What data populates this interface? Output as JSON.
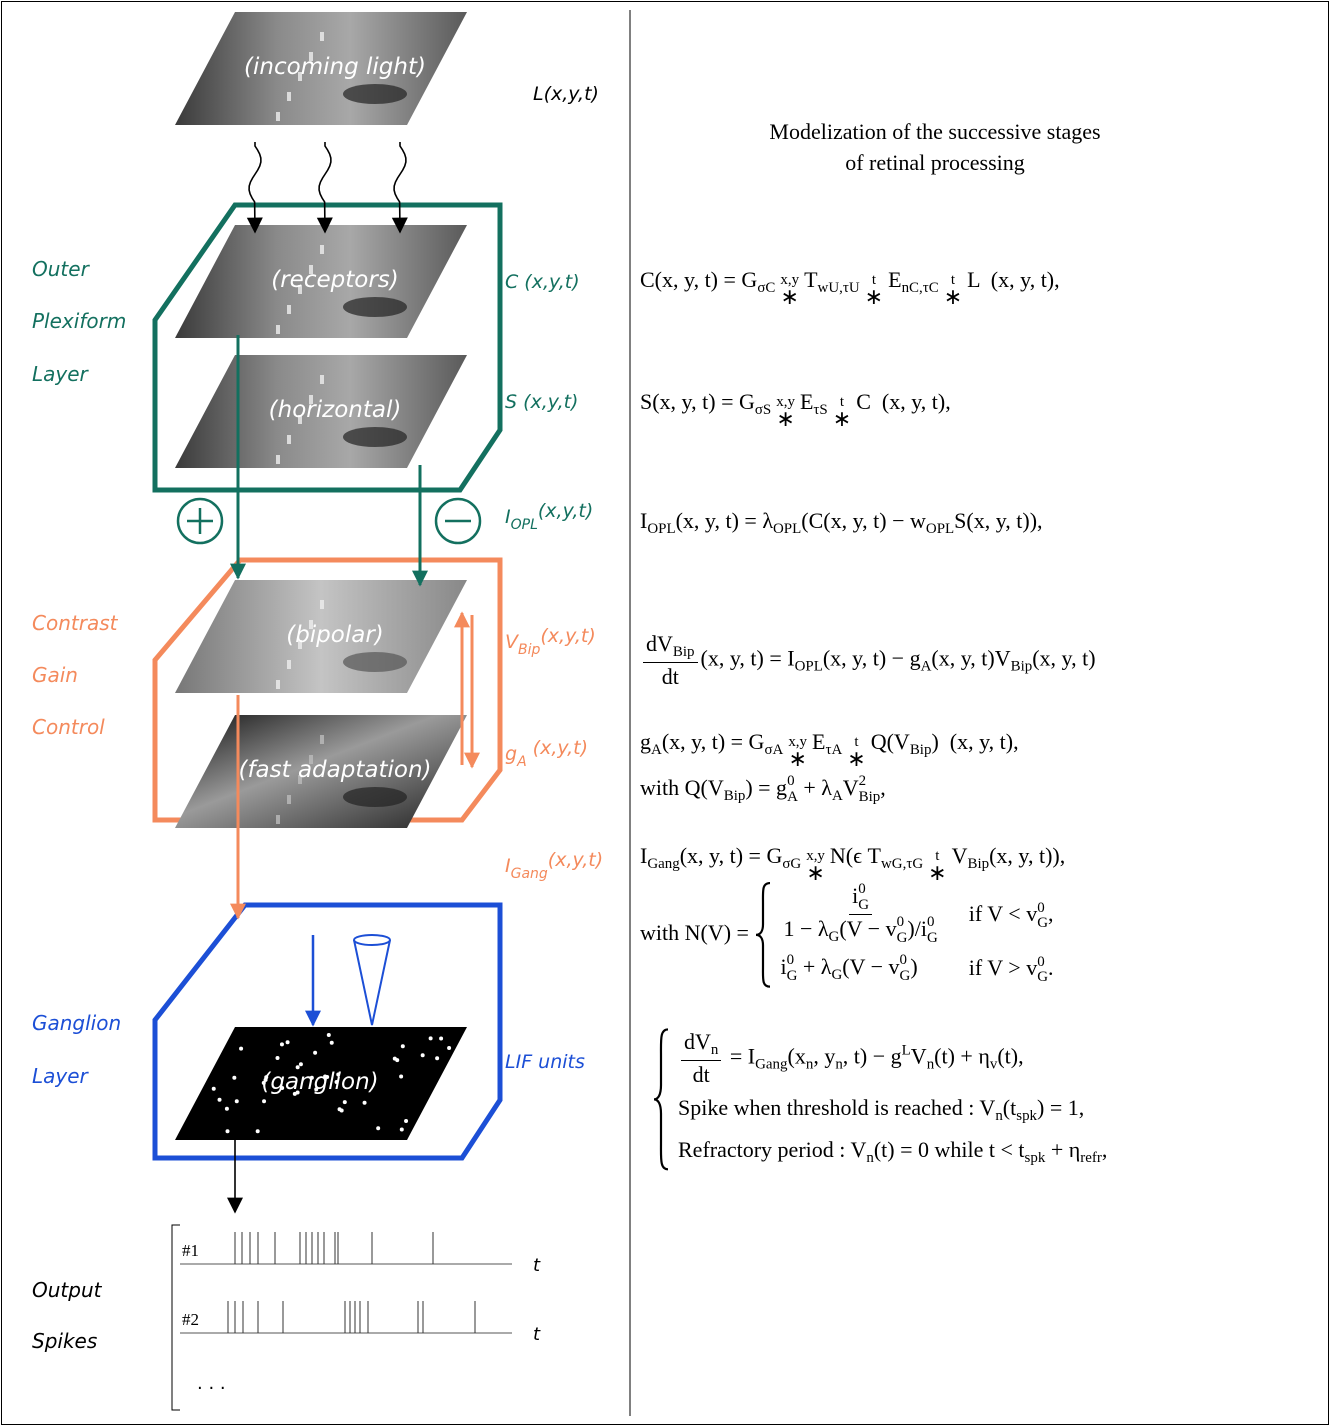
{
  "title": [
    "Modelization of the successive stages",
    "of retinal processing"
  ],
  "stages": [
    "(incoming light)",
    "(receptors)",
    "(horizontal)",
    "(bipolar)",
    "(fast adaptation)",
    "(ganglion)"
  ],
  "signals": [
    {
      "main": "L(x,y,t)"
    },
    {
      "main": "C (x,y,t)"
    },
    {
      "main": "S (x,y,t)"
    },
    {
      "main": "I",
      "sub": "OPL",
      "args": "(x,y,t)"
    },
    {
      "main": "V",
      "sub": "Bip",
      "args": "(x,y,t)"
    },
    {
      "main": "g",
      "sub": "A",
      "args": " (x,y,t)"
    },
    {
      "main": "I",
      "sub": "Gang",
      "args": "(x,y,t)"
    },
    {
      "main": "LIF units"
    }
  ],
  "layers": [
    [
      "Outer",
      "Plexiform",
      "Layer"
    ],
    [
      "Contrast",
      "Gain",
      "Control"
    ],
    [
      "Ganglion",
      "Layer"
    ],
    [
      "Output",
      "Spikes"
    ]
  ],
  "spikes": {
    "trains": [
      "#1",
      "#2"
    ],
    "axis": "t",
    "more": "· · ·"
  },
  "equations": [
    {
      "lines": [
        [
          "C(x, y, t) = G",
          {
            "sub": "σC"
          },
          {
            "op": "∗",
            "above": "x,y"
          },
          "T",
          {
            "sub": "wU,τU"
          },
          {
            "op": "∗",
            "above": "t"
          },
          "E",
          {
            "sub": "nC,τC"
          },
          {
            "op": "∗",
            "above": "t"
          },
          "L  (x, y, t),"
        ]
      ]
    },
    {
      "lines": [
        [
          "S(x, y, t) = G",
          {
            "sub": "σS"
          },
          {
            "op": "∗",
            "above": "x,y"
          },
          "E",
          {
            "sub": "τS"
          },
          {
            "op": "∗",
            "above": "t"
          },
          "C  (x, y, t),"
        ]
      ]
    },
    {
      "lines": [
        [
          "I",
          {
            "sub": "OPL"
          },
          "(x, y, t) = λ",
          {
            "sub": "OPL"
          },
          "(C(x, y, t) − w",
          {
            "sub": "OPL"
          },
          "S(x, y, t)),"
        ]
      ]
    },
    {
      "lines": [
        [
          {
            "frac": [
              [
                "dV",
                {
                  "sub": "Bip"
                }
              ],
              [
                "dt"
              ]
            ]
          },
          "(x, y, t) = I",
          {
            "sub": "OPL"
          },
          "(x, y, t) − g",
          {
            "sub": "A"
          },
          "(x, y, t)V",
          {
            "sub": "Bip"
          },
          "(x, y, t)"
        ]
      ]
    },
    {
      "lines": [
        [
          "g",
          {
            "sub": "A"
          },
          "(x, y, t) = G",
          {
            "sub": "σA"
          },
          {
            "op": "∗",
            "above": "x,y"
          },
          "E",
          {
            "sub": "τA"
          },
          {
            "op": "∗",
            "above": "t"
          },
          "Q(V",
          {
            "sub": "Bip"
          },
          ")  (x, y, t),"
        ],
        [
          "with Q(V",
          {
            "sub": "Bip"
          },
          ") = g",
          {
            "subsup": [
              "A",
              "0"
            ]
          },
          " + λ",
          {
            "sub": "A"
          },
          "V",
          {
            "subsup": [
              "Bip",
              "2"
            ]
          },
          ","
        ]
      ]
    },
    {
      "lines": [
        [
          "I",
          {
            "sub": "Gang"
          },
          "(x, y, t) = G",
          {
            "sub": "σG"
          },
          {
            "op": "∗",
            "above": "x,y"
          },
          "N(ϵ T",
          {
            "sub": "wG,τG"
          },
          {
            "op": "∗",
            "above": "t"
          },
          "V",
          {
            "sub": "Bip"
          },
          "(x, y, t)),"
        ]
      ]
    },
    {
      "lines": [
        [
          "with N(V) = ",
          {
            "cases": [
              [
                [
                  {
                    "frac": [
                      [
                        "i",
                        {
                          "subsup": [
                            "G",
                            "0"
                          ]
                        }
                      ],
                      [
                        "1 − λ",
                        {
                          "sub": "G"
                        },
                        "(V − v",
                        {
                          "subsup": [
                            "G",
                            "0"
                          ]
                        },
                        ")/i",
                        {
                          "subsup": [
                            "G",
                            "0"
                          ]
                        }
                      ]
                    ]
                  }
                ],
                [
                  "if V < v",
                  {
                    "subsup": [
                      "G",
                      "0"
                    ]
                  },
                  ","
                ]
              ],
              [
                [
                  "i",
                  {
                    "subsup": [
                      "G",
                      "0"
                    ]
                  },
                  " + λ",
                  {
                    "sub": "G"
                  },
                  "(V − v",
                  {
                    "subsup": [
                      "G",
                      "0"
                    ]
                  },
                  ")"
                ],
                [
                  "if V > v",
                  {
                    "subsup": [
                      "G",
                      "0"
                    ]
                  },
                  "."
                ]
              ]
            ]
          }
        ]
      ]
    },
    {
      "lines": [
        [
          {
            "cases": [
              [
                [
                  {
                    "frac": [
                      [
                        "dV",
                        {
                          "sub": "n"
                        }
                      ],
                      [
                        "dt"
                      ]
                    ]
                  },
                  " = I",
                  {
                    "sub": "Gang"
                  },
                  "(x",
                  {
                    "sub": "n"
                  },
                  ", y",
                  {
                    "sub": "n"
                  },
                  ", t) − g",
                  {
                    "sup": "L"
                  },
                  "V",
                  {
                    "sub": "n"
                  },
                  "(t) + η",
                  {
                    "sub": "v"
                  },
                  "(t),"
                ]
              ],
              [
                [
                  "Spike when threshold is reached : V",
                  {
                    "sub": "n"
                  },
                  "(t",
                  {
                    "sub": "spk"
                  },
                  ") = 1,"
                ]
              ],
              [
                [
                  "Refractory period : V",
                  {
                    "sub": "n"
                  },
                  "(t) = 0 while t < t",
                  {
                    "sub": "spk"
                  },
                  " + η",
                  {
                    "sub": "refr"
                  },
                  ","
                ]
              ]
            ]
          }
        ]
      ]
    }
  ]
}
